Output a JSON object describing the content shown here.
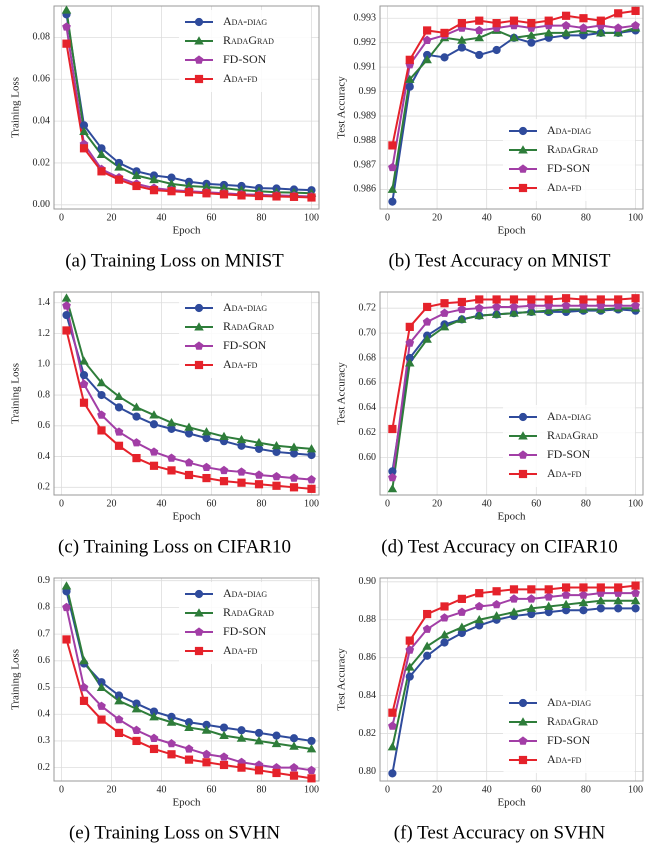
{
  "chart_data": [
    {
      "type": "line",
      "caption": "(a) Training Loss on MNIST",
      "xlabel": "Epoch",
      "ylabel": "Training Loss",
      "legend": "upper right",
      "grid": true,
      "x": [
        2,
        9,
        16,
        23,
        30,
        37,
        44,
        51,
        58,
        65,
        72,
        79,
        86,
        93,
        100
      ],
      "xlim": [
        -3,
        103
      ],
      "xticks": [
        0,
        20,
        40,
        60,
        80,
        100
      ],
      "ylim": [
        -0.002,
        0.095
      ],
      "yticks": [
        {
          "value": 0,
          "label": "0.00"
        },
        0.02,
        0.04,
        0.06,
        0.08
      ],
      "series": [
        {
          "name": "Ada-diag",
          "color": "#2f4b9c",
          "marker": "o",
          "values": [
            0.091,
            0.038,
            0.027,
            0.02,
            0.016,
            0.014,
            0.013,
            0.011,
            0.01,
            0.0095,
            0.009,
            0.008,
            0.0078,
            0.0073,
            0.007
          ]
        },
        {
          "name": "RadaGrad",
          "color": "#2e7d3a",
          "marker": "^",
          "values": [
            0.093,
            0.035,
            0.024,
            0.018,
            0.014,
            0.012,
            0.01,
            0.009,
            0.0085,
            0.008,
            0.007,
            0.0065,
            0.006,
            0.0058,
            0.0055
          ]
        },
        {
          "name": "FD-SON",
          "color": "#a23ea6",
          "marker": "p",
          "values": [
            0.085,
            0.029,
            0.017,
            0.013,
            0.01,
            0.008,
            0.007,
            0.0065,
            0.006,
            0.0055,
            0.005,
            0.0048,
            0.0045,
            0.0043,
            0.004
          ]
        },
        {
          "name": "Ada-fd",
          "color": "#e5222b",
          "marker": "s",
          "values": [
            0.077,
            0.027,
            0.016,
            0.012,
            0.009,
            0.007,
            0.0065,
            0.006,
            0.0055,
            0.005,
            0.0045,
            0.0042,
            0.004,
            0.0038,
            0.0035
          ]
        }
      ]
    },
    {
      "type": "line",
      "caption": "(b) Test Accuracy on MNIST",
      "xlabel": "Epoch",
      "ylabel": "Test Accuracy",
      "legend": "lower right",
      "grid": true,
      "x": [
        2,
        9,
        16,
        23,
        30,
        37,
        44,
        51,
        58,
        65,
        72,
        79,
        86,
        93,
        100
      ],
      "xlim": [
        -3,
        103
      ],
      "xticks": [
        0,
        20,
        40,
        60,
        80,
        100
      ],
      "ylim": [
        0.9852,
        0.9935
      ],
      "yticks": [
        0.986,
        0.987,
        0.988,
        0.989,
        0.99,
        0.991,
        0.992,
        0.993
      ],
      "series": [
        {
          "name": "Ada-diag",
          "color": "#2f4b9c",
          "marker": "o",
          "values": [
            0.9855,
            0.9902,
            0.9915,
            0.9914,
            0.9918,
            0.9915,
            0.9917,
            0.9922,
            0.992,
            0.9922,
            0.9923,
            0.9923,
            0.9924,
            0.9924,
            0.9925
          ]
        },
        {
          "name": "RadaGrad",
          "color": "#2e7d3a",
          "marker": "^",
          "values": [
            0.986,
            0.9905,
            0.9913,
            0.9922,
            0.9921,
            0.9922,
            0.9925,
            0.9922,
            0.9923,
            0.9924,
            0.9924,
            0.9925,
            0.9924,
            0.9924,
            0.9926
          ]
        },
        {
          "name": "FD-SON",
          "color": "#a23ea6",
          "marker": "p",
          "values": [
            0.9869,
            0.9911,
            0.9921,
            0.9923,
            0.9926,
            0.9925,
            0.9926,
            0.9927,
            0.9926,
            0.9927,
            0.9927,
            0.9926,
            0.9927,
            0.9926,
            0.9927
          ]
        },
        {
          "name": "Ada-fd",
          "color": "#e5222b",
          "marker": "s",
          "values": [
            0.9878,
            0.9913,
            0.9925,
            0.9924,
            0.9928,
            0.9929,
            0.9928,
            0.9929,
            0.9928,
            0.9929,
            0.9931,
            0.993,
            0.9929,
            0.9932,
            0.9933
          ]
        }
      ]
    },
    {
      "type": "line",
      "caption": "(c) Training Loss on CIFAR10",
      "xlabel": "Epoch",
      "ylabel": "Training Loss",
      "legend": "upper right",
      "grid": true,
      "x": [
        2,
        9,
        16,
        23,
        30,
        37,
        44,
        51,
        58,
        65,
        72,
        79,
        86,
        93,
        100
      ],
      "xlim": [
        -3,
        103
      ],
      "xticks": [
        0,
        20,
        40,
        60,
        80,
        100
      ],
      "ylim": [
        0.15,
        1.47
      ],
      "yticks": [
        0.2,
        0.4,
        0.6,
        0.8,
        {
          "value": 1,
          "label": "1.0"
        },
        1.2,
        1.4
      ],
      "series": [
        {
          "name": "Ada-diag",
          "color": "#2f4b9c",
          "marker": "o",
          "values": [
            1.32,
            0.93,
            0.8,
            0.72,
            0.66,
            0.61,
            0.58,
            0.55,
            0.52,
            0.5,
            0.47,
            0.45,
            0.43,
            0.42,
            0.41
          ]
        },
        {
          "name": "RadaGrad",
          "color": "#2e7d3a",
          "marker": "^",
          "values": [
            1.43,
            1.02,
            0.88,
            0.79,
            0.72,
            0.67,
            0.62,
            0.59,
            0.56,
            0.53,
            0.51,
            0.49,
            0.47,
            0.46,
            0.45
          ]
        },
        {
          "name": "FD-SON",
          "color": "#a23ea6",
          "marker": "p",
          "values": [
            1.38,
            0.87,
            0.67,
            0.56,
            0.49,
            0.43,
            0.39,
            0.36,
            0.33,
            0.31,
            0.3,
            0.28,
            0.27,
            0.26,
            0.25
          ]
        },
        {
          "name": "Ada-fd",
          "color": "#e5222b",
          "marker": "s",
          "values": [
            1.22,
            0.75,
            0.57,
            0.47,
            0.39,
            0.34,
            0.31,
            0.28,
            0.26,
            0.24,
            0.23,
            0.22,
            0.21,
            0.2,
            0.19
          ]
        }
      ]
    },
    {
      "type": "line",
      "caption": "(d) Test Accuracy on CIFAR10",
      "xlabel": "Epoch",
      "ylabel": "Test Accuracy",
      "legend": "lower right",
      "grid": true,
      "x": [
        2,
        9,
        16,
        23,
        30,
        37,
        44,
        51,
        58,
        65,
        72,
        79,
        86,
        93,
        100
      ],
      "xlim": [
        -3,
        103
      ],
      "xticks": [
        0,
        20,
        40,
        60,
        80,
        100
      ],
      "ylim": [
        0.57,
        0.733
      ],
      "yticks": [
        {
          "value": 0.6,
          "label": "0.60"
        },
        0.62,
        0.64,
        0.66,
        0.68,
        {
          "value": 0.7,
          "label": "0.70"
        },
        0.72
      ],
      "series": [
        {
          "name": "Ada-diag",
          "color": "#2f4b9c",
          "marker": "o",
          "values": [
            0.589,
            0.68,
            0.698,
            0.707,
            0.711,
            0.714,
            0.715,
            0.716,
            0.717,
            0.717,
            0.717,
            0.718,
            0.718,
            0.719,
            0.718
          ]
        },
        {
          "name": "RadaGrad",
          "color": "#2e7d3a",
          "marker": "^",
          "values": [
            0.575,
            0.676,
            0.695,
            0.705,
            0.711,
            0.714,
            0.715,
            0.716,
            0.717,
            0.718,
            0.719,
            0.719,
            0.719,
            0.72,
            0.72
          ]
        },
        {
          "name": "FD-SON",
          "color": "#a23ea6",
          "marker": "p",
          "values": [
            0.584,
            0.692,
            0.709,
            0.716,
            0.719,
            0.72,
            0.721,
            0.721,
            0.722,
            0.722,
            0.722,
            0.722,
            0.722,
            0.722,
            0.722
          ]
        },
        {
          "name": "Ada-fd",
          "color": "#e5222b",
          "marker": "s",
          "values": [
            0.623,
            0.705,
            0.721,
            0.724,
            0.725,
            0.727,
            0.727,
            0.727,
            0.727,
            0.727,
            0.728,
            0.727,
            0.727,
            0.727,
            0.728
          ]
        }
      ]
    },
    {
      "type": "line",
      "caption": "(e) Training Loss on SVHN",
      "xlabel": "Epoch",
      "ylabel": "Training Loss",
      "legend": "upper right",
      "grid": true,
      "x": [
        2,
        9,
        16,
        23,
        30,
        37,
        44,
        51,
        58,
        65,
        72,
        79,
        86,
        93,
        100
      ],
      "xlim": [
        -3,
        103
      ],
      "xticks": [
        0,
        20,
        40,
        60,
        80,
        100
      ],
      "ylim": [
        0.15,
        0.91
      ],
      "yticks": [
        0.2,
        0.3,
        0.4,
        0.5,
        0.6,
        0.7,
        0.8,
        0.9
      ],
      "series": [
        {
          "name": "Ada-diag",
          "color": "#2f4b9c",
          "marker": "o",
          "values": [
            0.86,
            0.59,
            0.52,
            0.47,
            0.44,
            0.41,
            0.39,
            0.37,
            0.36,
            0.35,
            0.34,
            0.33,
            0.32,
            0.31,
            0.3
          ]
        },
        {
          "name": "RadaGrad",
          "color": "#2e7d3a",
          "marker": "^",
          "values": [
            0.88,
            0.6,
            0.5,
            0.45,
            0.42,
            0.39,
            0.37,
            0.35,
            0.34,
            0.32,
            0.31,
            0.3,
            0.29,
            0.28,
            0.27
          ]
        },
        {
          "name": "FD-SON",
          "color": "#a23ea6",
          "marker": "p",
          "values": [
            0.8,
            0.5,
            0.43,
            0.38,
            0.34,
            0.31,
            0.29,
            0.27,
            0.25,
            0.24,
            0.22,
            0.21,
            0.2,
            0.2,
            0.19
          ]
        },
        {
          "name": "Ada-fd",
          "color": "#e5222b",
          "marker": "s",
          "values": [
            0.68,
            0.45,
            0.38,
            0.33,
            0.3,
            0.27,
            0.25,
            0.23,
            0.22,
            0.21,
            0.2,
            0.19,
            0.18,
            0.17,
            0.16
          ]
        }
      ]
    },
    {
      "type": "line",
      "caption": "(f) Test Accuracy on SVHN",
      "xlabel": "Epoch",
      "ylabel": "Test Accuracy",
      "legend": "lower right",
      "grid": true,
      "x": [
        2,
        9,
        16,
        23,
        30,
        37,
        44,
        51,
        58,
        65,
        72,
        79,
        86,
        93,
        100
      ],
      "xlim": [
        -3,
        103
      ],
      "xticks": [
        0,
        20,
        40,
        60,
        80,
        100
      ],
      "ylim": [
        0.795,
        0.902
      ],
      "yticks": [
        {
          "value": 0.8,
          "label": "0.80"
        },
        0.82,
        0.84,
        0.86,
        0.88,
        {
          "value": 0.9,
          "label": "0.90"
        }
      ],
      "series": [
        {
          "name": "Ada-diag",
          "color": "#2f4b9c",
          "marker": "o",
          "values": [
            0.799,
            0.85,
            0.861,
            0.868,
            0.873,
            0.877,
            0.88,
            0.882,
            0.883,
            0.884,
            0.885,
            0.885,
            0.886,
            0.886,
            0.886
          ]
        },
        {
          "name": "RadaGrad",
          "color": "#2e7d3a",
          "marker": "^",
          "values": [
            0.813,
            0.855,
            0.866,
            0.872,
            0.876,
            0.88,
            0.882,
            0.884,
            0.886,
            0.887,
            0.888,
            0.889,
            0.89,
            0.89,
            0.89
          ]
        },
        {
          "name": "FD-SON",
          "color": "#a23ea6",
          "marker": "p",
          "values": [
            0.824,
            0.864,
            0.875,
            0.881,
            0.884,
            0.887,
            0.888,
            0.891,
            0.891,
            0.892,
            0.893,
            0.893,
            0.894,
            0.894,
            0.894
          ]
        },
        {
          "name": "Ada-fd",
          "color": "#e5222b",
          "marker": "s",
          "values": [
            0.831,
            0.869,
            0.883,
            0.887,
            0.891,
            0.894,
            0.895,
            0.896,
            0.896,
            0.896,
            0.897,
            0.897,
            0.897,
            0.897,
            0.898
          ]
        }
      ]
    }
  ]
}
